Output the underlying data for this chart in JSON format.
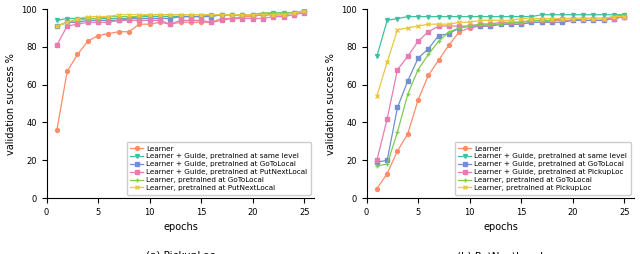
{
  "epochs": [
    1,
    2,
    3,
    4,
    5,
    6,
    7,
    8,
    9,
    10,
    11,
    12,
    13,
    14,
    15,
    16,
    17,
    18,
    19,
    20,
    21,
    22,
    23,
    24,
    25
  ],
  "chart_a": {
    "title": "(a) PickupLoc",
    "ylabel": "validation success %",
    "xlabel": "epochs",
    "ylim": [
      0,
      100
    ],
    "series": {
      "Learner": {
        "color": "#ff8c69",
        "marker": "o",
        "values": [
          36,
          67,
          76,
          83,
          86,
          87,
          88,
          88,
          92,
          92,
          93,
          92,
          93,
          93,
          93,
          93,
          95,
          95,
          96,
          96,
          97,
          97,
          97,
          98,
          99
        ]
      },
      "Learner + Guide, pretrained at same level": {
        "color": "#40c0a0",
        "marker": "v",
        "values": [
          94,
          95,
          95,
          95,
          95,
          95,
          95,
          95,
          96,
          96,
          96,
          96,
          96,
          96,
          96,
          97,
          97,
          97,
          97,
          97,
          97,
          98,
          98,
          98,
          99
        ]
      },
      "Learner + Guide, pretrained at GoToLocal": {
        "color": "#7090d0",
        "marker": "s",
        "values": [
          91,
          93,
          93,
          94,
          94,
          94,
          94,
          95,
          95,
          95,
          95,
          95,
          96,
          96,
          96,
          96,
          97,
          97,
          97,
          97,
          97,
          97,
          97,
          98,
          99
        ]
      },
      "Learner + Guide, pretrained at PutNextLocal": {
        "color": "#e87cb0",
        "marker": "s",
        "values": [
          81,
          91,
          92,
          93,
          93,
          93,
          94,
          94,
          94,
          94,
          94,
          92,
          94,
          94,
          94,
          93,
          94,
          95,
          95,
          95,
          95,
          96,
          96,
          97,
          98
        ]
      },
      "Learner, pretrained at GoToLocal": {
        "color": "#80cc50",
        "marker": "+",
        "values": [
          91,
          93,
          94,
          95,
          95,
          96,
          96,
          96,
          96,
          97,
          97,
          97,
          97,
          97,
          97,
          97,
          97,
          97,
          97,
          97,
          98,
          98,
          98,
          98,
          99
        ]
      },
      "Learner, pretrained at PutNextLocal": {
        "color": "#e8c840",
        "marker": "x",
        "values": [
          91,
          93,
          95,
          96,
          96,
          96,
          97,
          97,
          97,
          97,
          97,
          97,
          97,
          97,
          97,
          97,
          97,
          97,
          97,
          97,
          97,
          97,
          97,
          98,
          99
        ]
      }
    }
  },
  "chart_b": {
    "title": "(b) PutNextLocal",
    "ylabel": "validation success %",
    "xlabel": "epochs",
    "ylim": [
      0,
      100
    ],
    "series": {
      "Learner": {
        "color": "#ff8c69",
        "marker": "o",
        "values": [
          5,
          13,
          25,
          34,
          52,
          65,
          73,
          81,
          88,
          90,
          91,
          91,
          92,
          92,
          92,
          93,
          93,
          94,
          94,
          94,
          95,
          95,
          95,
          95,
          96
        ]
      },
      "Learner + Guide, pretrained at same level": {
        "color": "#40c0a0",
        "marker": "v",
        "values": [
          75,
          94,
          95,
          96,
          96,
          96,
          96,
          96,
          96,
          96,
          96,
          96,
          96,
          96,
          96,
          96,
          97,
          97,
          97,
          97,
          97,
          97,
          97,
          97,
          97
        ]
      },
      "Learner + Guide, pretrained at GoToLocal": {
        "color": "#7090d0",
        "marker": "s",
        "values": [
          19,
          20,
          48,
          62,
          74,
          79,
          86,
          87,
          90,
          91,
          91,
          91,
          92,
          92,
          92,
          93,
          93,
          93,
          93,
          94,
          94,
          94,
          94,
          95,
          96
        ]
      },
      "Learner + Guide, pretrained at PickupLoc": {
        "color": "#e87cb0",
        "marker": "s",
        "values": [
          20,
          42,
          68,
          75,
          83,
          88,
          91,
          91,
          91,
          91,
          92,
          92,
          93,
          93,
          93,
          94,
          94,
          94,
          95,
          95,
          95,
          95,
          95,
          95,
          96
        ]
      },
      "Learner, pretrained at GoToLocal": {
        "color": "#80cc50",
        "marker": "+",
        "values": [
          17,
          18,
          35,
          55,
          68,
          76,
          83,
          88,
          90,
          91,
          92,
          92,
          92,
          93,
          93,
          94,
          94,
          94,
          95,
          95,
          95,
          95,
          95,
          96,
          97
        ]
      },
      "Learner, pretrained at PickupLoc": {
        "color": "#e8c840",
        "marker": "x",
        "values": [
          54,
          72,
          89,
          90,
          91,
          92,
          92,
          92,
          93,
          93,
          94,
          94,
          94,
          94,
          95,
          95,
          95,
          95,
          95,
          95,
          95,
          95,
          95,
          96,
          96
        ]
      }
    }
  },
  "legend_fontsize": 5.2,
  "axis_fontsize": 7,
  "title_fontsize": 7.5,
  "tick_fontsize": 6,
  "linewidth": 0.9,
  "markersize": 2.8
}
